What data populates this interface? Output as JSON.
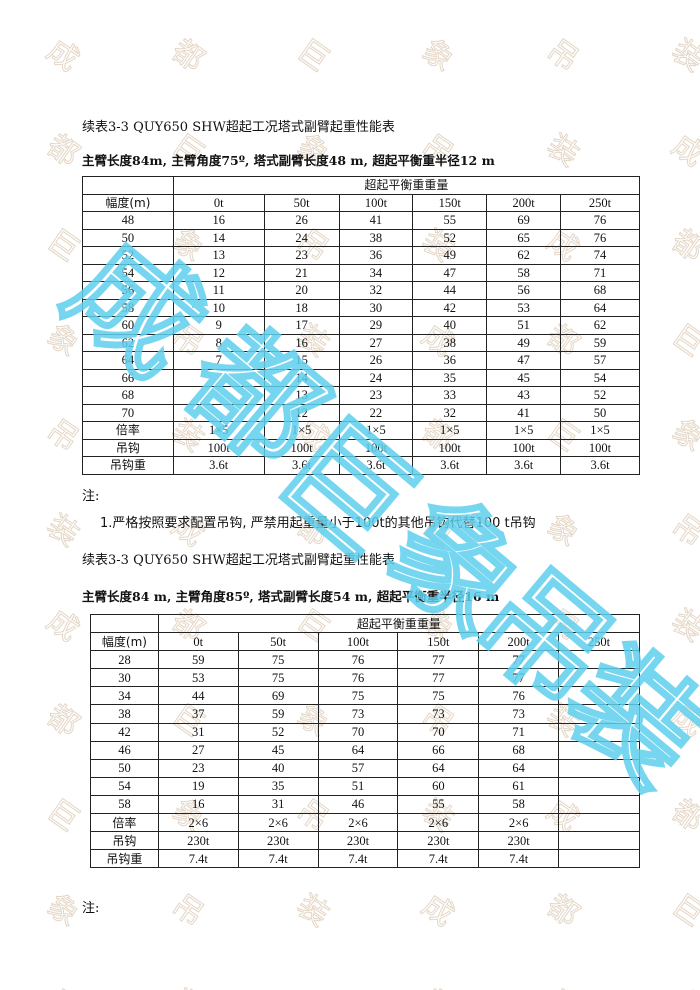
{
  "watermark": {
    "text": "成都巨象吊装",
    "color_faint": "#e4d6c6",
    "color_big": "#5fd0ee"
  },
  "section1": {
    "title": "续表3-3 QUY650 SHW超起工况塔式副臂起重性能表",
    "subtitle": "主臂长度84m, 主臂角度75º, 塔式副臂长度48 m, 超起平衡重半径12 m",
    "group_header": "超起平衡重重量",
    "row_header": "幅度(m)",
    "columns": [
      "0t",
      "50t",
      "100t",
      "150t",
      "200t",
      "250t"
    ],
    "rows": [
      [
        "48",
        "16",
        "26",
        "41",
        "55",
        "69",
        "76"
      ],
      [
        "50",
        "14",
        "24",
        "38",
        "52",
        "65",
        "76"
      ],
      [
        "52",
        "13",
        "23",
        "36",
        "49",
        "62",
        "74"
      ],
      [
        "54",
        "12",
        "21",
        "34",
        "47",
        "58",
        "71"
      ],
      [
        "56",
        "11",
        "20",
        "32",
        "44",
        "56",
        "68"
      ],
      [
        "58",
        "10",
        "18",
        "30",
        "42",
        "53",
        "64"
      ],
      [
        "60",
        "9",
        "17",
        "29",
        "40",
        "51",
        "62"
      ],
      [
        "62",
        "8",
        "16",
        "27",
        "38",
        "49",
        "59"
      ],
      [
        "64",
        "7",
        "15",
        "26",
        "36",
        "47",
        "57"
      ],
      [
        "66",
        "",
        "14",
        "24",
        "35",
        "45",
        "54"
      ],
      [
        "68",
        "",
        "13",
        "23",
        "33",
        "43",
        "52"
      ],
      [
        "70",
        "",
        "12",
        "22",
        "32",
        "41",
        "50"
      ]
    ],
    "footer_rows": [
      [
        "倍率",
        "1×5",
        "1×5",
        "1×5",
        "1×5",
        "1×5",
        "1×5"
      ],
      [
        "吊钩",
        "100t",
        "100t",
        "100t",
        "100t",
        "100t",
        "100t"
      ],
      [
        "吊钩重",
        "3.6t",
        "3.6t",
        "3.6t",
        "3.6t",
        "3.6t",
        "3.6t"
      ]
    ],
    "note_label": "注:",
    "note_1": "1.严格按照要求配置吊钩, 严禁用起重量小于100t的其他吊钩代替100  t吊钩"
  },
  "section2": {
    "title": "续表3-3 QUY650 SHW超起工况塔式副臂起重性能表",
    "subtitle": "主臂长度84 m, 主臂角度85º, 塔式副臂长度54 m, 超起平衡重半径16 m",
    "group_header": "超起平衡重重量",
    "row_header": "幅度(m)",
    "columns": [
      "0t",
      "50t",
      "100t",
      "150t",
      "200t",
      "250t"
    ],
    "rows": [
      [
        "28",
        "59",
        "75",
        "76",
        "77",
        "77",
        ""
      ],
      [
        "30",
        "53",
        "75",
        "76",
        "77",
        "77",
        ""
      ],
      [
        "34",
        "44",
        "69",
        "75",
        "75",
        "76",
        ""
      ],
      [
        "38",
        "37",
        "59",
        "73",
        "73",
        "73",
        ""
      ],
      [
        "42",
        "31",
        "52",
        "70",
        "70",
        "71",
        ""
      ],
      [
        "46",
        "27",
        "45",
        "64",
        "66",
        "68",
        ""
      ],
      [
        "50",
        "23",
        "40",
        "57",
        "64",
        "64",
        ""
      ],
      [
        "54",
        "19",
        "35",
        "51",
        "60",
        "61",
        ""
      ],
      [
        "58",
        "16",
        "31",
        "46",
        "55",
        "58",
        ""
      ]
    ],
    "footer_rows": [
      [
        "倍率",
        "2×6",
        "2×6",
        "2×6",
        "2×6",
        "2×6",
        ""
      ],
      [
        "吊钩",
        "230t",
        "230t",
        "230t",
        "230t",
        "230t",
        ""
      ],
      [
        "吊钩重",
        "7.4t",
        "7.4t",
        "7.4t",
        "7.4t",
        "7.4t",
        ""
      ]
    ],
    "note_label": "注:"
  }
}
